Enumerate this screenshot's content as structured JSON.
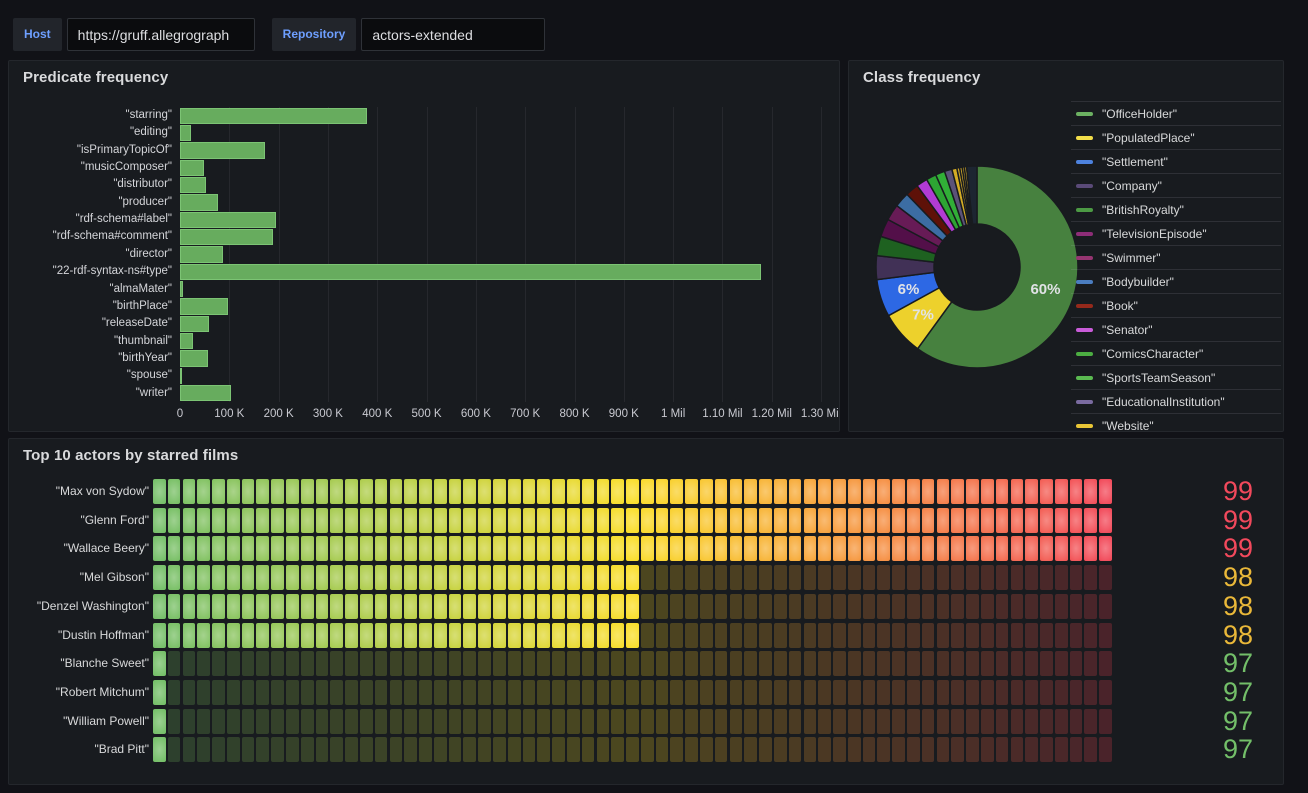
{
  "topbar": {
    "host_label": "Host",
    "host_value": "https://gruff.allegrograph",
    "repository_label": "Repository",
    "repository_value": "actors-extended"
  },
  "panels": {
    "predicate": {
      "title": "Predicate frequency"
    },
    "class": {
      "title": "Class frequency"
    },
    "actors": {
      "title": "Top 10 actors by starred films"
    }
  },
  "colors": {
    "page_bg": "#111217",
    "panel_bg": "#181B1F",
    "accent_blue": "#6E9FFF",
    "bar_green_fill": "#67AC5E",
    "bar_green_border": "#7CC474",
    "grid": "rgba(204,204,220,0.08)"
  },
  "chart_data": [
    {
      "type": "bar",
      "orientation": "horizontal",
      "title": "Predicate frequency",
      "categories": [
        "\"starring\"",
        "\"editing\"",
        "\"isPrimaryTopicOf\"",
        "\"musicComposer\"",
        "\"distributor\"",
        "\"producer\"",
        "\"rdf-schema#label\"",
        "\"rdf-schema#comment\"",
        "\"director\"",
        "\"22-rdf-syntax-ns#type\"",
        "\"almaMater\"",
        "\"birthPlace\"",
        "\"releaseDate\"",
        "\"thumbnail\"",
        "\"birthYear\"",
        "\"spouse\"",
        "\"writer\""
      ],
      "values": [
        380000,
        22000,
        172000,
        49000,
        52000,
        77000,
        194000,
        188000,
        87000,
        1178000,
        6000,
        97000,
        59000,
        26000,
        57000,
        5000,
        103000
      ],
      "xlim": [
        0,
        1310000
      ],
      "x_ticks": [
        {
          "value": 0,
          "label": "0"
        },
        {
          "value": 100000,
          "label": "100 K"
        },
        {
          "value": 200000,
          "label": "200 K"
        },
        {
          "value": 300000,
          "label": "300 K"
        },
        {
          "value": 400000,
          "label": "400 K"
        },
        {
          "value": 500000,
          "label": "500 K"
        },
        {
          "value": 600000,
          "label": "600 K"
        },
        {
          "value": 700000,
          "label": "700 K"
        },
        {
          "value": 800000,
          "label": "800 K"
        },
        {
          "value": 900000,
          "label": "900 K"
        },
        {
          "value": 1000000,
          "label": "1 Mil"
        },
        {
          "value": 1100000,
          "label": "1.10 Mil"
        },
        {
          "value": 1200000,
          "label": "1.20 Mil"
        },
        {
          "value": 1300000,
          "label": "1.30 Mil"
        }
      ],
      "grid": true,
      "bar_color": "#73BF69"
    },
    {
      "type": "pie",
      "donut": true,
      "title": "Class frequency",
      "label_min_pct": 5,
      "legend_position": "right",
      "slices": [
        {
          "label": "\"OfficeHolder\"",
          "pct": 60,
          "color": "#47813F",
          "legend_color": "#6CB162",
          "in_legend": true
        },
        {
          "label": "\"PopulatedPlace\"",
          "pct": 7,
          "color": "#EDD12C",
          "legend_color": "#F2DE4A",
          "in_legend": true
        },
        {
          "label": "\"Settlement\"",
          "pct": 6,
          "color": "#2D68E4",
          "legend_color": "#4D82DE",
          "in_legend": true
        },
        {
          "label": "\"Company\"",
          "pct": 3.8,
          "color": "#413156",
          "legend_color": "#5A4A78",
          "in_legend": true
        },
        {
          "label": "\"BritishRoyalty\"",
          "pct": 3.1,
          "color": "#1E6120",
          "legend_color": "#4C9A44",
          "in_legend": true
        },
        {
          "label": "\"TelevisionEpisode\"",
          "pct": 2.9,
          "color": "#530F49",
          "legend_color": "#8E2D78",
          "in_legend": true
        },
        {
          "label": "\"Swimmer\"",
          "pct": 2.6,
          "color": "#671B56",
          "legend_color": "#963571",
          "in_legend": true
        },
        {
          "label": "\"Bodybuilder\"",
          "pct": 2.4,
          "color": "#3C6DA3",
          "legend_color": "#4B7DC0",
          "in_legend": true
        },
        {
          "label": "\"Book\"",
          "pct": 2.1,
          "color": "#5E1108",
          "legend_color": "#95291B",
          "in_legend": true
        },
        {
          "label": "\"Senator\"",
          "pct": 1.8,
          "color": "#B13BD4",
          "legend_color": "#C95CD9",
          "in_legend": true
        },
        {
          "label": "\"ComicsCharacter\"",
          "pct": 1.6,
          "color": "#2DA433",
          "legend_color": "#4CAE42",
          "in_legend": true
        },
        {
          "label": "\"SportsTeamSeason\"",
          "pct": 1.5,
          "color": "#31AF37",
          "legend_color": "#5BBA51",
          "in_legend": true
        },
        {
          "label": "\"EducationalInstitution\"",
          "pct": 1.2,
          "color": "#5B5278",
          "legend_color": "#7A6BA0",
          "in_legend": true
        },
        {
          "label": "\"Website\"",
          "pct": 0.8,
          "color": "#D4AC25",
          "legend_color": "#E9C636",
          "in_legend": true
        },
        {
          "label": "",
          "pct": 0.45,
          "color": "#C9A227",
          "legend_color": "#C9A227",
          "in_legend": false
        },
        {
          "label": "",
          "pct": 0.4,
          "color": "#D1A92A",
          "legend_color": "#D1A92A",
          "in_legend": false
        },
        {
          "label": "",
          "pct": 0.35,
          "color": "#BF9A24",
          "legend_color": "#BF9A24",
          "in_legend": false
        },
        {
          "label": "",
          "pct": 0.35,
          "color": "#CBA528",
          "legend_color": "#CBA528",
          "in_legend": false
        },
        {
          "label": "",
          "pct": 1.65,
          "color": "#1D2531",
          "legend_color": "#1D2531",
          "in_legend": false
        }
      ]
    },
    {
      "type": "bar",
      "subtype": "lcd-gauge",
      "title": "Top 10 actors by starred films",
      "categories": [
        "\"Max von Sydow\"",
        "\"Glenn Ford\"",
        "\"Wallace Beery\"",
        "\"Mel Gibson\"",
        "\"Denzel Washington\"",
        "\"Dustin Hoffman\"",
        "\"Blanche Sweet\"",
        "\"Robert Mitchum\"",
        "\"William Powell\"",
        "\"Brad Pitt\""
      ],
      "values": [
        99,
        99,
        99,
        98,
        98,
        98,
        97,
        97,
        97,
        97
      ],
      "min": 97,
      "max": 99,
      "gradient_stops": [
        {
          "pos": 0,
          "color": "#73BF69"
        },
        {
          "pos": 0.5,
          "color": "#FADE2A"
        },
        {
          "pos": 1,
          "color": "#F2495C"
        }
      ],
      "value_colors": {
        "97": "#73BF69",
        "98": "#EAB839",
        "99": "#F2495C"
      }
    }
  ]
}
